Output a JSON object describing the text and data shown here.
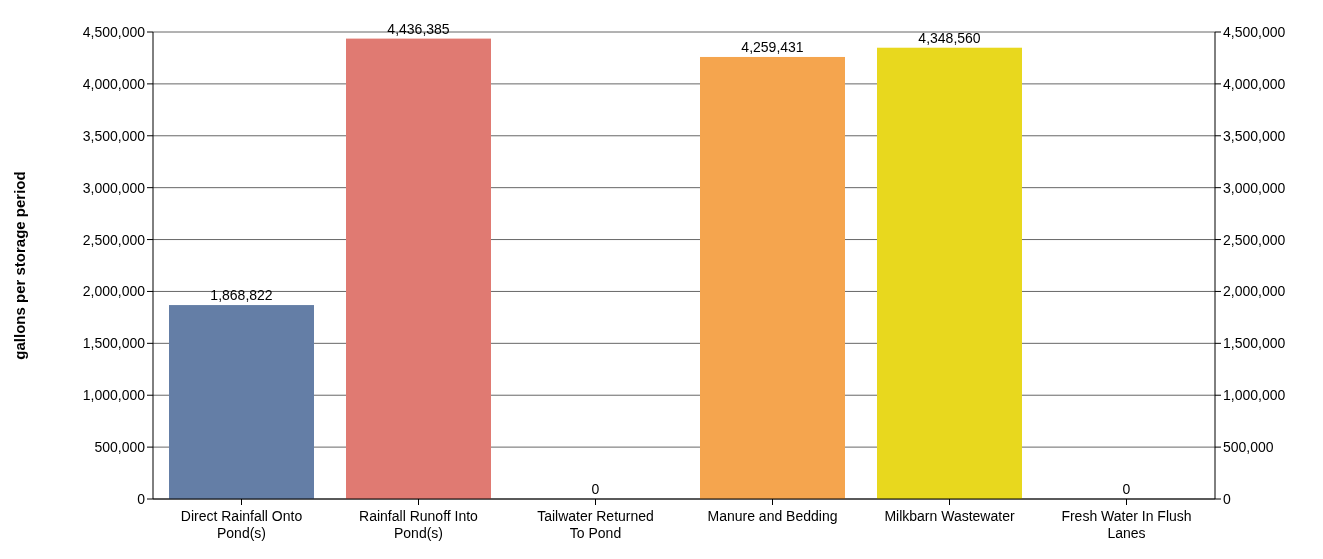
{
  "chart_data": {
    "type": "bar",
    "ylabel": "gallons per storage period",
    "categories": [
      "Direct Rainfall Onto Pond(s)",
      "Rainfall Runoff Into Pond(s)",
      "Tailwater Returned To Pond",
      "Manure and Bedding",
      "Milkbarn Wastewater",
      "Fresh Water In Flush Lanes"
    ],
    "values": [
      1868822,
      4436385,
      0,
      4259431,
      4348560,
      0
    ],
    "colors": [
      "#647ea6",
      "#e07a72",
      null,
      "#f5a54e",
      "#e8d81e",
      null
    ],
    "ylim": [
      0,
      4500000
    ],
    "yticks": [
      {
        "value": 0,
        "label": "0"
      },
      {
        "value": 500000,
        "label": "500,000"
      },
      {
        "value": 1000000,
        "label": "1,000,000"
      },
      {
        "value": 1500000,
        "label": "1,500,000"
      },
      {
        "value": 2000000,
        "label": "2,000,000"
      },
      {
        "value": 2500000,
        "label": "2,500,000"
      },
      {
        "value": 3000000,
        "label": "3,000,000"
      },
      {
        "value": 3500000,
        "label": "3,500,000"
      },
      {
        "value": 4000000,
        "label": "4,000,000"
      },
      {
        "value": 4500000,
        "label": "4,500,000"
      }
    ],
    "y2lim": [
      0,
      4500000
    ],
    "y2ticks": [
      {
        "value": 0,
        "label": "0"
      },
      {
        "value": 500000,
        "label": "500,000"
      },
      {
        "value": 1000000,
        "label": "1,000,000"
      },
      {
        "value": 1500000,
        "label": "1,500,000"
      },
      {
        "value": 2000000,
        "label": "2,000,000"
      },
      {
        "value": 2500000,
        "label": "2,500,000"
      },
      {
        "value": 3000000,
        "label": "3,000,000"
      },
      {
        "value": 3500000,
        "label": "3,500,000"
      },
      {
        "value": 4000000,
        "label": "4,000,000"
      },
      {
        "value": 4500000,
        "label": "4,500,000"
      }
    ],
    "value_labels": [
      "1,868,822",
      "4,436,385",
      "0",
      "4,259,431",
      "4,348,560",
      "0"
    ],
    "grid": "y"
  }
}
